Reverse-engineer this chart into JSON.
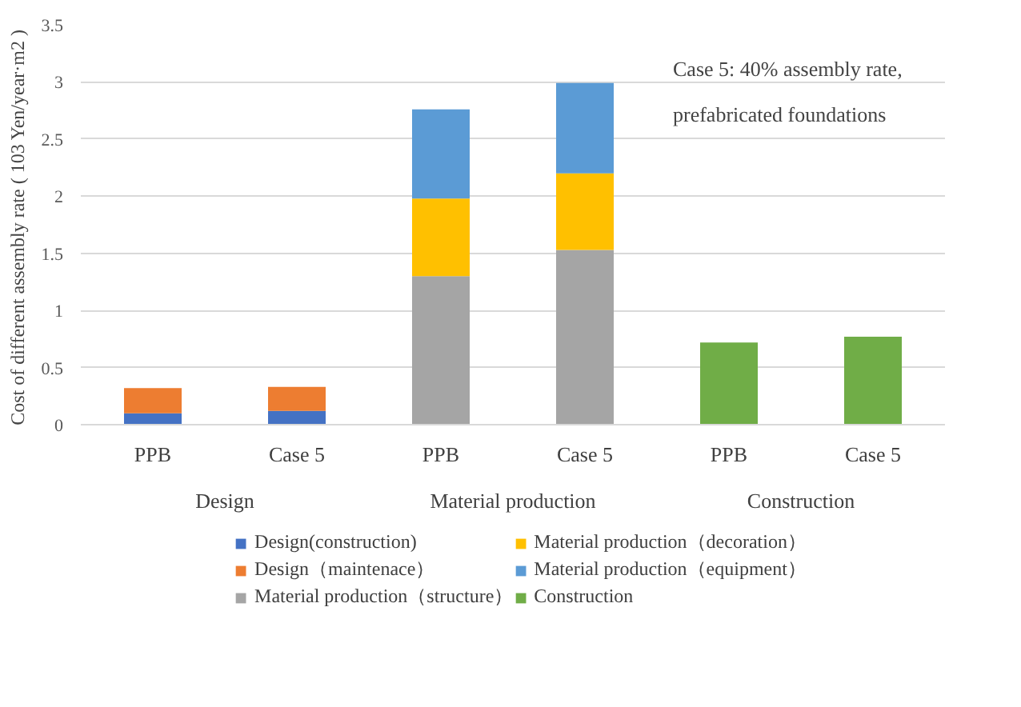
{
  "chart_data": {
    "type": "bar",
    "stacked": true,
    "ylabel": "Cost of different assembly rate ( 103  Yen/year·m2 )",
    "categories": [
      "PPB",
      "Case 5",
      "PPB",
      "Case 5",
      "PPB",
      "Case 5"
    ],
    "annotations": [
      "Case 5: 40% assembly rate,\nprefabricated foundations",
      "Design",
      "Material production",
      "Construction"
    ],
    "series": [
      {
        "name": "Design(construction)",
        "color": "#4472c4",
        "values": [
          0.1,
          0.12,
          null,
          null,
          null,
          null
        ]
      },
      {
        "name": "Design（maintenace）",
        "color": "#ed7d31",
        "values": [
          0.22,
          0.21,
          null,
          null,
          null,
          null
        ]
      },
      {
        "name": "Material production（structure）",
        "color": "#a5a5a5",
        "values": [
          null,
          null,
          1.3,
          1.53,
          null,
          null
        ]
      },
      {
        "name": "Material production（decoration）",
        "color": "#ffc000",
        "values": [
          null,
          null,
          0.68,
          0.67,
          null,
          null
        ]
      },
      {
        "name": "Material production（equipment）",
        "color": "#5b9bd5",
        "values": [
          null,
          null,
          0.78,
          0.79,
          null,
          null
        ]
      },
      {
        "name": "Construction",
        "color": "#70ad47",
        "values": [
          null,
          null,
          null,
          null,
          0.72,
          0.77
        ]
      }
    ],
    "ylim": [
      0,
      3.5
    ],
    "yticks": [
      0,
      0.5,
      1,
      1.5,
      2,
      2.5,
      3,
      3.5
    ],
    "grid": "y",
    "legend": "bottom"
  }
}
